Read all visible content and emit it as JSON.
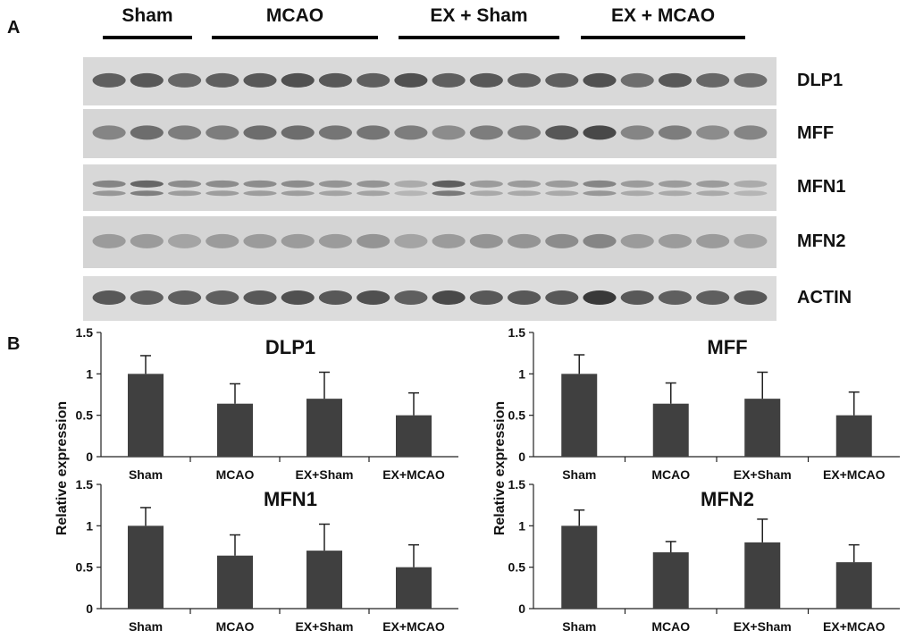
{
  "panels": {
    "a": "A",
    "b": "B"
  },
  "groups": [
    "Sham",
    "MCAO",
    "EX + Sham",
    "EX + MCAO"
  ],
  "blot_rows": [
    {
      "label": "DLP1",
      "background": "#d9d9d9",
      "intensities": [
        0.7,
        0.75,
        0.65,
        0.7,
        0.75,
        0.8,
        0.75,
        0.7,
        0.8,
        0.7,
        0.75,
        0.7,
        0.7,
        0.8,
        0.6,
        0.75,
        0.65,
        0.6
      ]
    },
    {
      "label": "MFF",
      "background": "#d6d6d6",
      "intensities": [
        0.45,
        0.6,
        0.5,
        0.5,
        0.6,
        0.6,
        0.55,
        0.55,
        0.5,
        0.4,
        0.5,
        0.5,
        0.75,
        0.85,
        0.45,
        0.5,
        0.4,
        0.45
      ]
    },
    {
      "label": "MFN1",
      "background": "#d8d8d8",
      "intensities": [
        0.45,
        0.65,
        0.4,
        0.4,
        0.4,
        0.4,
        0.35,
        0.35,
        0.2,
        0.7,
        0.3,
        0.3,
        0.3,
        0.45,
        0.3,
        0.3,
        0.3,
        0.2
      ]
    },
    {
      "label": "MFN2",
      "background": "#d4d4d4",
      "intensities": [
        0.3,
        0.3,
        0.25,
        0.3,
        0.3,
        0.3,
        0.3,
        0.35,
        0.25,
        0.3,
        0.35,
        0.35,
        0.4,
        0.45,
        0.3,
        0.3,
        0.3,
        0.25
      ]
    },
    {
      "label": "ACTIN",
      "background": "#dcdcdc",
      "intensities": [
        0.75,
        0.7,
        0.7,
        0.7,
        0.75,
        0.8,
        0.75,
        0.8,
        0.7,
        0.85,
        0.75,
        0.75,
        0.75,
        0.95,
        0.75,
        0.7,
        0.7,
        0.75
      ]
    }
  ],
  "ylabel": "Relative expression",
  "chart_data": [
    {
      "type": "bar",
      "title": "DLP1",
      "categories": [
        "Sham",
        "MCAO",
        "EX+Sham",
        "EX+MCAO"
      ],
      "values": [
        1.0,
        0.64,
        0.7,
        0.5
      ],
      "errors": [
        0.22,
        0.24,
        0.32,
        0.27
      ],
      "ylim": [
        0,
        1.5
      ],
      "yticks": [
        "0",
        "0.5",
        "1",
        "1.5"
      ],
      "bar_color": "#404040"
    },
    {
      "type": "bar",
      "title": "MFF",
      "categories": [
        "Sham",
        "MCAO",
        "EX+Sham",
        "EX+MCAO"
      ],
      "values": [
        1.0,
        0.64,
        0.7,
        0.5
      ],
      "errors": [
        0.23,
        0.25,
        0.32,
        0.28
      ],
      "ylim": [
        0,
        1.5
      ],
      "yticks": [
        "0",
        "0.5",
        "1",
        "1.5"
      ],
      "bar_color": "#404040"
    },
    {
      "type": "bar",
      "title": "MFN1",
      "categories": [
        "Sham",
        "MCAO",
        "EX+Sham",
        "EX+MCAO"
      ],
      "values": [
        1.0,
        0.64,
        0.7,
        0.5
      ],
      "errors": [
        0.22,
        0.25,
        0.32,
        0.27
      ],
      "ylim": [
        0,
        1.5
      ],
      "yticks": [
        "0",
        "0.5",
        "1",
        "1.5"
      ],
      "bar_color": "#404040"
    },
    {
      "type": "bar",
      "title": "MFN2",
      "categories": [
        "Sham",
        "MCAO",
        "EX+Sham",
        "EX+MCAO"
      ],
      "values": [
        1.0,
        0.68,
        0.8,
        0.56
      ],
      "errors": [
        0.19,
        0.13,
        0.28,
        0.21
      ],
      "ylim": [
        0,
        1.5
      ],
      "yticks": [
        "0",
        "0.5",
        "1",
        "1.5"
      ],
      "bar_color": "#404040"
    }
  ]
}
